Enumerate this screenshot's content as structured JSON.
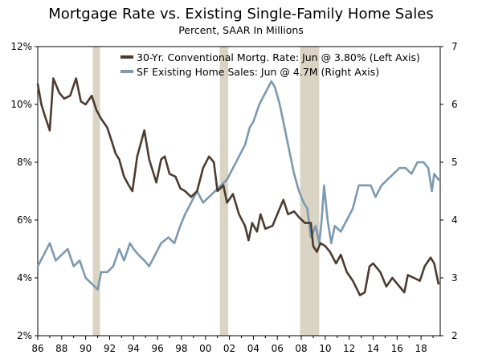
{
  "chart_data": {
    "type": "line",
    "title": "Mortgage Rate vs. Existing Single-Family Home Sales",
    "subtitle": "Percent, SAAR In Millions",
    "x_tick_labels": [
      "86",
      "88",
      "90",
      "92",
      "94",
      "96",
      "98",
      "00",
      "02",
      "04",
      "06",
      "08",
      "10",
      "12",
      "14",
      "16",
      "18"
    ],
    "x_range": [
      1986,
      2019.6
    ],
    "left_axis": {
      "ticks": [
        "2%",
        "4%",
        "6%",
        "8%",
        "10%",
        "12%"
      ],
      "range": [
        2,
        12
      ]
    },
    "right_axis": {
      "ticks": [
        "2",
        "3",
        "4",
        "5",
        "6",
        "7"
      ],
      "range": [
        2,
        7
      ]
    },
    "recessions": [
      [
        1990.6,
        1991.2
      ],
      [
        2001.2,
        2001.9
      ],
      [
        2007.9,
        2009.5
      ]
    ],
    "legend_placement": "top-right",
    "grid": false,
    "series": [
      {
        "name": "30-Yr. Conventional Mortg. Rate: Jun @ 3.80% (Left Axis)",
        "axis": "left",
        "color": "#4d3b30",
        "x": [
          1986.0,
          1986.3,
          1986.6,
          1987.0,
          1987.3,
          1987.8,
          1988.2,
          1988.7,
          1989.2,
          1989.6,
          1990.0,
          1990.5,
          1990.9,
          1991.3,
          1991.8,
          1992.2,
          1992.5,
          1992.8,
          1993.2,
          1993.6,
          1993.9,
          1994.3,
          1994.9,
          1995.3,
          1995.9,
          1996.3,
          1996.6,
          1997.0,
          1997.5,
          1997.9,
          1998.3,
          1998.8,
          1999.3,
          1999.8,
          2000.3,
          2000.7,
          2001.0,
          2001.5,
          2001.8,
          2002.3,
          2002.8,
          2003.3,
          2003.6,
          2003.9,
          2004.3,
          2004.6,
          2005.0,
          2005.6,
          2006.0,
          2006.5,
          2006.9,
          2007.4,
          2007.8,
          2008.3,
          2008.8,
          2009.0,
          2009.3,
          2009.6,
          2010.0,
          2010.4,
          2010.9,
          2011.3,
          2011.8,
          2012.3,
          2012.9,
          2013.3,
          2013.7,
          2014.0,
          2014.6,
          2015.1,
          2015.6,
          2016.0,
          2016.6,
          2016.9,
          2017.4,
          2017.9,
          2018.3,
          2018.8,
          2019.1,
          2019.45
        ],
        "values": [
          10.7,
          10.0,
          9.6,
          9.1,
          10.9,
          10.4,
          10.2,
          10.3,
          10.9,
          10.1,
          10.0,
          10.3,
          9.8,
          9.5,
          9.2,
          8.7,
          8.3,
          8.1,
          7.5,
          7.2,
          7.0,
          8.2,
          9.1,
          8.1,
          7.3,
          8.1,
          8.2,
          7.6,
          7.5,
          7.1,
          7.0,
          6.8,
          7.0,
          7.8,
          8.2,
          8.0,
          7.0,
          7.2,
          6.6,
          6.9,
          6.2,
          5.8,
          5.3,
          5.9,
          5.6,
          6.2,
          5.7,
          5.8,
          6.2,
          6.7,
          6.2,
          6.3,
          6.1,
          5.9,
          5.9,
          5.1,
          4.9,
          5.2,
          5.1,
          4.9,
          4.5,
          4.8,
          4.2,
          3.9,
          3.4,
          3.5,
          4.4,
          4.5,
          4.2,
          3.7,
          4.0,
          3.8,
          3.5,
          4.1,
          4.0,
          3.9,
          4.4,
          4.7,
          4.5,
          3.8
        ]
      },
      {
        "name": "SF Existing Home Sales: Jun @ 4.7M (Right Axis)",
        "axis": "right",
        "color": "#7b99b0",
        "x": [
          1986.0,
          1986.5,
          1987.0,
          1987.5,
          1988.0,
          1988.5,
          1989.0,
          1989.5,
          1990.0,
          1990.5,
          1991.0,
          1991.3,
          1991.8,
          1992.3,
          1992.8,
          1993.2,
          1993.7,
          1994.0,
          1994.4,
          1994.9,
          1995.3,
          1995.8,
          1996.3,
          1996.9,
          1997.4,
          1997.9,
          1998.3,
          1998.8,
          1999.3,
          1999.8,
          2000.3,
          2000.8,
          2001.3,
          2001.8,
          2002.3,
          2002.8,
          2003.3,
          2003.7,
          2004.0,
          2004.5,
          2005.0,
          2005.5,
          2005.8,
          2006.2,
          2006.6,
          2007.0,
          2007.4,
          2007.8,
          2008.2,
          2008.5,
          2008.8,
          2009.2,
          2009.5,
          2009.7,
          2009.9,
          2010.2,
          2010.5,
          2010.8,
          2011.3,
          2011.8,
          2012.3,
          2012.8,
          2013.3,
          2013.8,
          2014.2,
          2014.7,
          2015.2,
          2015.7,
          2016.2,
          2016.7,
          2017.2,
          2017.7,
          2018.2,
          2018.6,
          2018.9,
          2019.1,
          2019.45
        ],
        "values": [
          3.2,
          3.4,
          3.6,
          3.3,
          3.4,
          3.5,
          3.2,
          3.3,
          3.0,
          2.9,
          2.8,
          3.1,
          3.1,
          3.2,
          3.5,
          3.3,
          3.6,
          3.5,
          3.4,
          3.3,
          3.2,
          3.4,
          3.6,
          3.7,
          3.6,
          3.9,
          4.1,
          4.3,
          4.5,
          4.3,
          4.4,
          4.5,
          4.6,
          4.7,
          4.9,
          5.1,
          5.3,
          5.6,
          5.7,
          6.0,
          6.2,
          6.4,
          6.3,
          6.0,
          5.6,
          5.2,
          4.8,
          4.5,
          4.3,
          4.2,
          3.7,
          3.9,
          3.6,
          4.0,
          4.6,
          4.0,
          3.6,
          3.9,
          3.8,
          4.0,
          4.2,
          4.6,
          4.6,
          4.6,
          4.4,
          4.6,
          4.7,
          4.8,
          4.9,
          4.9,
          4.8,
          5.0,
          5.0,
          4.9,
          4.5,
          4.8,
          4.7
        ]
      }
    ]
  }
}
